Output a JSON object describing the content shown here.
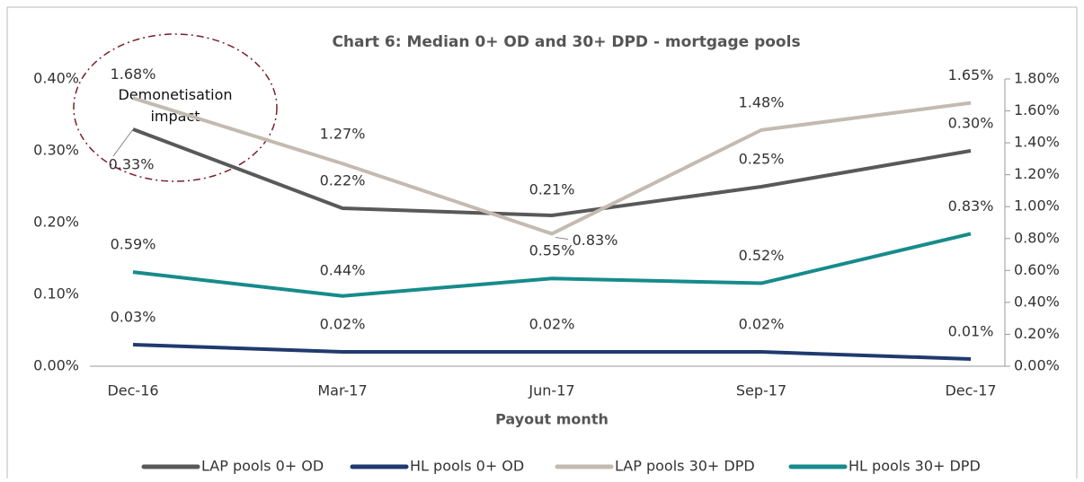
{
  "chart_data": {
    "type": "line",
    "title": "Chart 6: Median 0+ OD and 30+ DPD - mortgage pools",
    "x_label": "Payout month",
    "annotation": "Demonetisation impact",
    "categories": [
      "Dec-16",
      "Mar-17",
      "Jun-17",
      "Sep-17",
      "Dec-17"
    ],
    "ylim": [
      0,
      0.4
    ],
    "yticks": [
      {
        "value": 0,
        "label": "0.00%"
      },
      {
        "value": 0.1,
        "label": "0.10%"
      },
      {
        "value": 0.2,
        "label": "0.20%"
      },
      {
        "value": 0.3,
        "label": "0.30%"
      },
      {
        "value": 0.4,
        "label": "0.40%"
      }
    ],
    "y2lim": [
      0,
      1.8
    ],
    "y2ticks": [
      {
        "value": 0,
        "label": "0.00%"
      },
      {
        "value": 0.2,
        "label": "0.20%"
      },
      {
        "value": 0.4,
        "label": "0.40%"
      },
      {
        "value": 0.6,
        "label": "0.60%"
      },
      {
        "value": 0.8,
        "label": "0.80%"
      },
      {
        "value": 1.0,
        "label": "1.00%"
      },
      {
        "value": 1.2,
        "label": "1.20%"
      },
      {
        "value": 1.4,
        "label": "1.40%"
      },
      {
        "value": 1.6,
        "label": "1.60%"
      },
      {
        "value": 1.8,
        "label": "1.80%"
      }
    ],
    "series": [
      {
        "name": "LAP pools 0+ OD",
        "color": "#595959",
        "axis": "y",
        "values": [
          0.33,
          0.22,
          0.21,
          0.25,
          0.3
        ],
        "value_labels": [
          "0.33%",
          "0.22%",
          "0.21%",
          "0.25%",
          "0.30%"
        ]
      },
      {
        "name": "HL pools 0+ OD",
        "color": "#1f3a6e",
        "axis": "y",
        "values": [
          0.03,
          0.02,
          0.02,
          0.02,
          0.01
        ],
        "value_labels": [
          "0.03%",
          "0.02%",
          "0.02%",
          "0.02%",
          "0.01%"
        ]
      },
      {
        "name": "LAP pools 30+ DPD",
        "color": "#c3bbb1",
        "axis": "y2",
        "values": [
          1.68,
          1.27,
          0.83,
          1.48,
          1.65
        ],
        "value_labels": [
          "1.68%",
          "1.27%",
          "0.83%",
          "1.48%",
          "1.65%"
        ]
      },
      {
        "name": "HL pools 30+ DPD",
        "color": "#178b8b",
        "axis": "y2",
        "values": [
          0.59,
          0.44,
          0.55,
          0.52,
          0.83
        ],
        "value_labels": [
          "0.59%",
          "0.44%",
          "0.55%",
          "0.52%",
          "0.83%"
        ]
      }
    ]
  }
}
